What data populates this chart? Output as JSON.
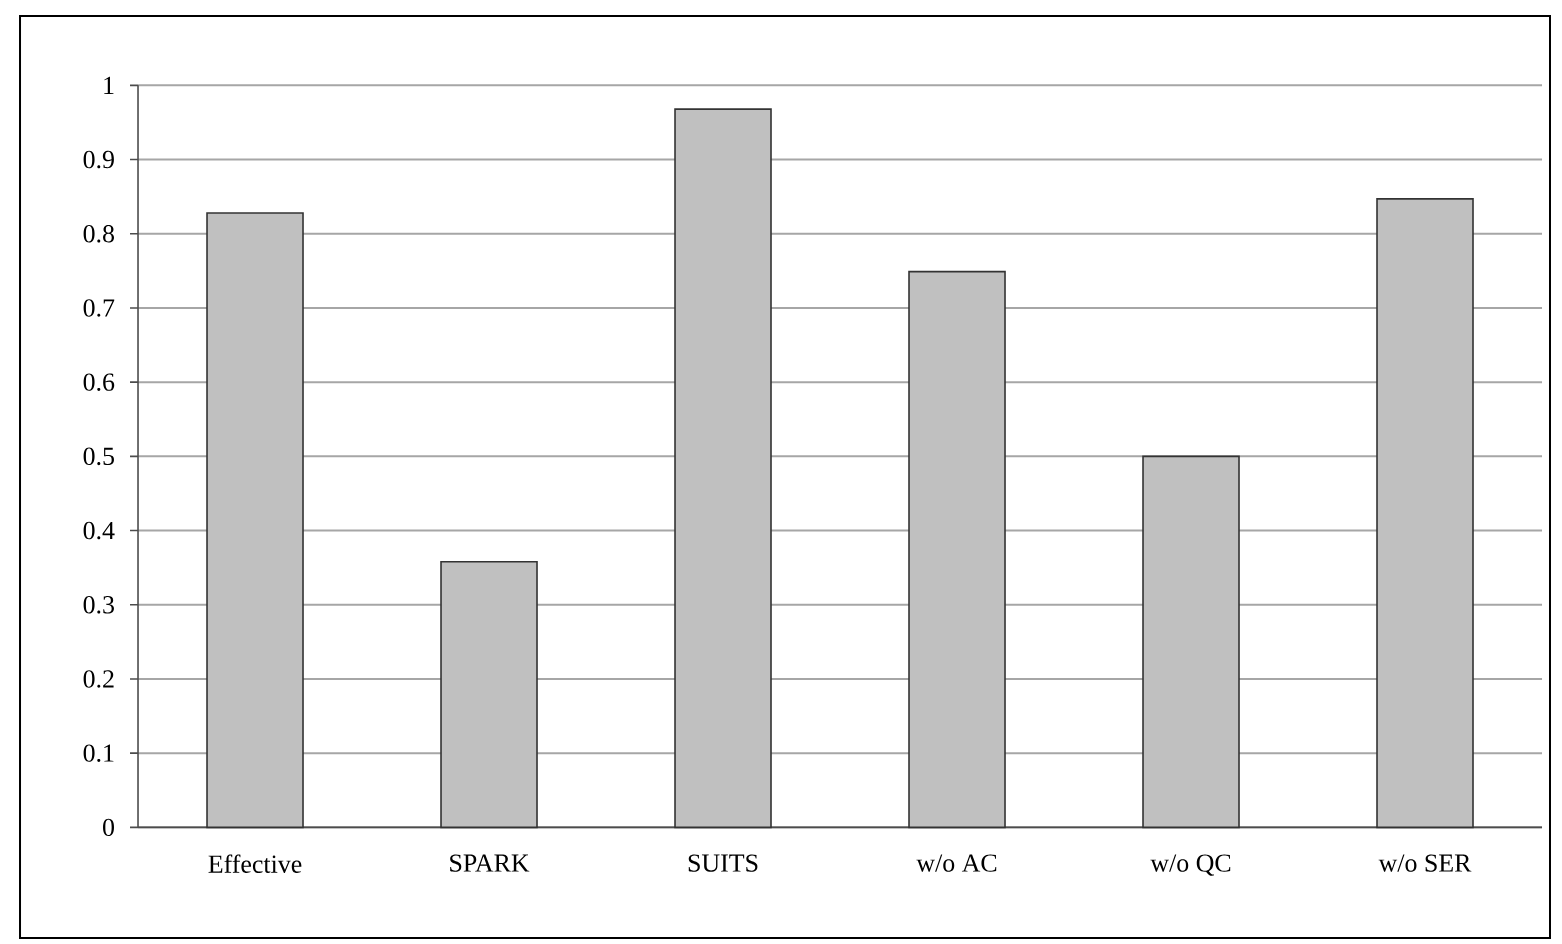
{
  "chart_data": {
    "type": "bar",
    "categories": [
      "Effective",
      "SPARK",
      "SUITS",
      "w/o AC",
      "w/o QC",
      "w/o SER"
    ],
    "values": [
      0.828,
      0.358,
      0.968,
      0.749,
      0.5,
      0.847
    ],
    "color": "#c0c0c0",
    "ylim": [
      0,
      1
    ],
    "yticks": [
      0,
      0.1,
      0.2,
      0.3,
      0.4,
      0.5,
      0.6,
      0.7,
      0.8,
      0.9,
      1
    ],
    "grid": "y"
  }
}
